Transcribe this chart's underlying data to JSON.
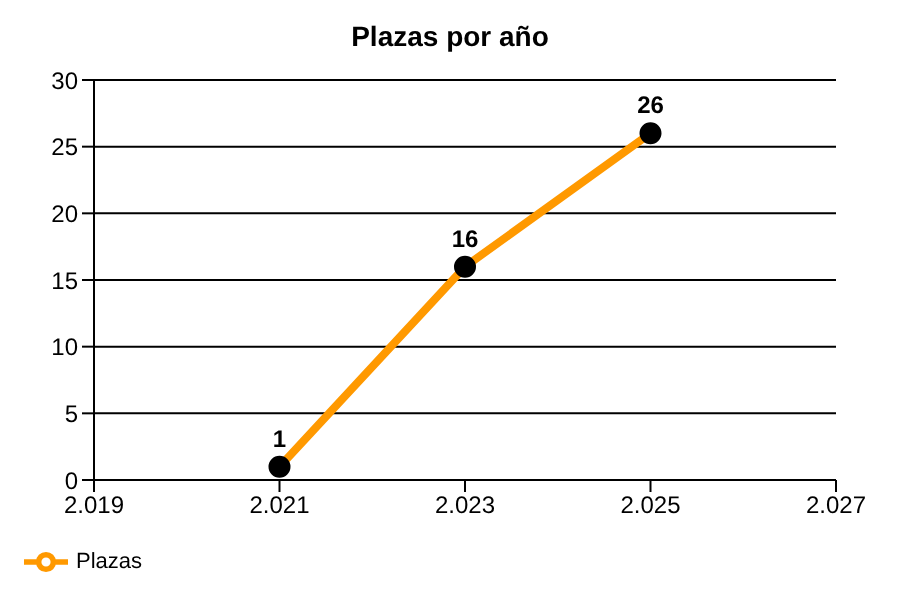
{
  "chart_data": {
    "type": "line",
    "title": "Plazas por año",
    "x": [
      2021,
      2023,
      2025
    ],
    "series": [
      {
        "name": "Plazas",
        "color": "#ff9900",
        "values": [
          1,
          16,
          26
        ]
      }
    ],
    "xlim": [
      2019,
      2027
    ],
    "xticks": [
      {
        "value": 2019,
        "label": "2.019"
      },
      {
        "value": 2021,
        "label": "2.021"
      },
      {
        "value": 2023,
        "label": "2.023"
      },
      {
        "value": 2025,
        "label": "2.025"
      },
      {
        "value": 2027,
        "label": "2.027"
      }
    ],
    "ylim": [
      0,
      30
    ],
    "yticks": [
      0,
      5,
      10,
      15,
      20,
      25,
      30
    ],
    "grid": "y",
    "legend": "bottom left",
    "marker": "circle",
    "line_style": "solid",
    "data_labels": true
  }
}
